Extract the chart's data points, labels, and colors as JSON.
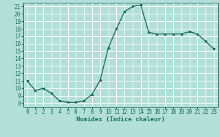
{
  "x": [
    0,
    1,
    2,
    3,
    4,
    5,
    6,
    7,
    8,
    9,
    10,
    11,
    12,
    13,
    14,
    15,
    16,
    17,
    18,
    19,
    20,
    21,
    22,
    23
  ],
  "y": [
    11,
    9.7,
    10,
    9.3,
    8.3,
    8.1,
    8.1,
    8.3,
    9.2,
    11.1,
    15.4,
    18.0,
    20.3,
    21.0,
    21.2,
    17.5,
    17.3,
    17.3,
    17.3,
    17.3,
    17.6,
    17.3,
    16.3,
    15.3
  ],
  "title": "",
  "xlabel": "Humidex (Indice chaleur)",
  "xlim": [
    -0.5,
    23.5
  ],
  "ylim": [
    7.5,
    21.5
  ],
  "yticks": [
    8,
    9,
    10,
    11,
    12,
    13,
    14,
    15,
    16,
    17,
    18,
    19,
    20,
    21
  ],
  "xticks": [
    0,
    1,
    2,
    3,
    4,
    5,
    6,
    7,
    8,
    9,
    10,
    11,
    12,
    13,
    14,
    15,
    16,
    17,
    18,
    19,
    20,
    21,
    22,
    23
  ],
  "line_color": "#1a6b5a",
  "bg_color": "#b2e0d8",
  "grid_color": "#ffffff",
  "marker": "s",
  "marker_size": 2,
  "line_width": 1.0,
  "tick_fontsize": 5.5,
  "xlabel_fontsize": 6.5
}
